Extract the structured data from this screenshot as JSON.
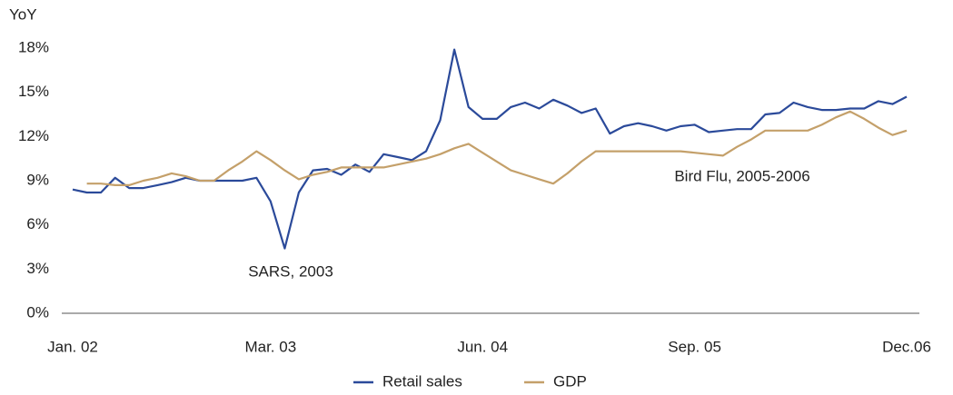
{
  "chart_data": {
    "type": "line",
    "y_label": "YoY",
    "categories": [
      "Jan. 02",
      null,
      null,
      null,
      null,
      null,
      null,
      null,
      null,
      null,
      null,
      null,
      null,
      null,
      "Mar. 03",
      null,
      null,
      null,
      null,
      null,
      null,
      null,
      null,
      null,
      null,
      null,
      null,
      null,
      null,
      "Jun. 04",
      null,
      null,
      null,
      null,
      null,
      null,
      null,
      null,
      null,
      null,
      null,
      null,
      null,
      null,
      "Sep. 05",
      null,
      null,
      null,
      null,
      null,
      null,
      null,
      null,
      null,
      null,
      null,
      null,
      null,
      null,
      "Dec.06"
    ],
    "series": [
      {
        "name": "Retail sales",
        "color": "#2b4a9a",
        "values": [
          8.4,
          8.2,
          8.2,
          9.2,
          8.5,
          8.5,
          8.7,
          8.9,
          9.2,
          9.0,
          9.0,
          9.0,
          9.0,
          9.2,
          7.6,
          4.4,
          8.2,
          9.7,
          9.8,
          9.4,
          10.1,
          9.6,
          10.8,
          10.6,
          10.4,
          11.0,
          13.1,
          17.9,
          14.0,
          13.2,
          13.2,
          14.0,
          14.3,
          13.9,
          14.5,
          14.1,
          13.6,
          13.9,
          12.2,
          12.7,
          12.9,
          12.7,
          12.4,
          12.7,
          12.8,
          12.3,
          12.4,
          12.5,
          12.5,
          13.5,
          13.6,
          14.3,
          14.0,
          13.8,
          13.8,
          13.9,
          13.9,
          14.4,
          14.2,
          14.7
        ]
      },
      {
        "name": "GDP",
        "color": "#c4a06a",
        "values": [
          null,
          8.8,
          8.8,
          8.7,
          8.7,
          9.0,
          9.2,
          9.5,
          9.3,
          9.0,
          9.0,
          9.7,
          10.3,
          11.0,
          10.4,
          9.7,
          9.1,
          9.4,
          9.6,
          9.9,
          9.9,
          9.9,
          9.9,
          10.1,
          10.3,
          10.5,
          10.8,
          11.2,
          11.5,
          10.9,
          10.3,
          9.7,
          9.4,
          9.1,
          8.8,
          9.5,
          10.3,
          11.0,
          11.0,
          11.0,
          11.0,
          11.0,
          11.0,
          11.0,
          10.9,
          10.8,
          10.7,
          11.3,
          11.8,
          12.4,
          12.4,
          12.4,
          12.4,
          12.8,
          13.3,
          13.7,
          13.2,
          12.6,
          12.1,
          12.4
        ]
      }
    ],
    "ylim": [
      0,
      18
    ],
    "yticks": [
      {
        "value": 0,
        "label": "0%"
      },
      {
        "value": 3,
        "label": "3%"
      },
      {
        "value": 6,
        "label": "6%"
      },
      {
        "value": 9,
        "label": "9%"
      },
      {
        "value": 12,
        "label": "12%"
      },
      {
        "value": 15,
        "label": "15%"
      },
      {
        "value": 18,
        "label": "18%"
      }
    ],
    "grid": false,
    "legend": "bottom",
    "annotations": [
      {
        "text": "SARS, 2003"
      },
      {
        "text": "Bird Flu, 2005-2006"
      }
    ]
  }
}
